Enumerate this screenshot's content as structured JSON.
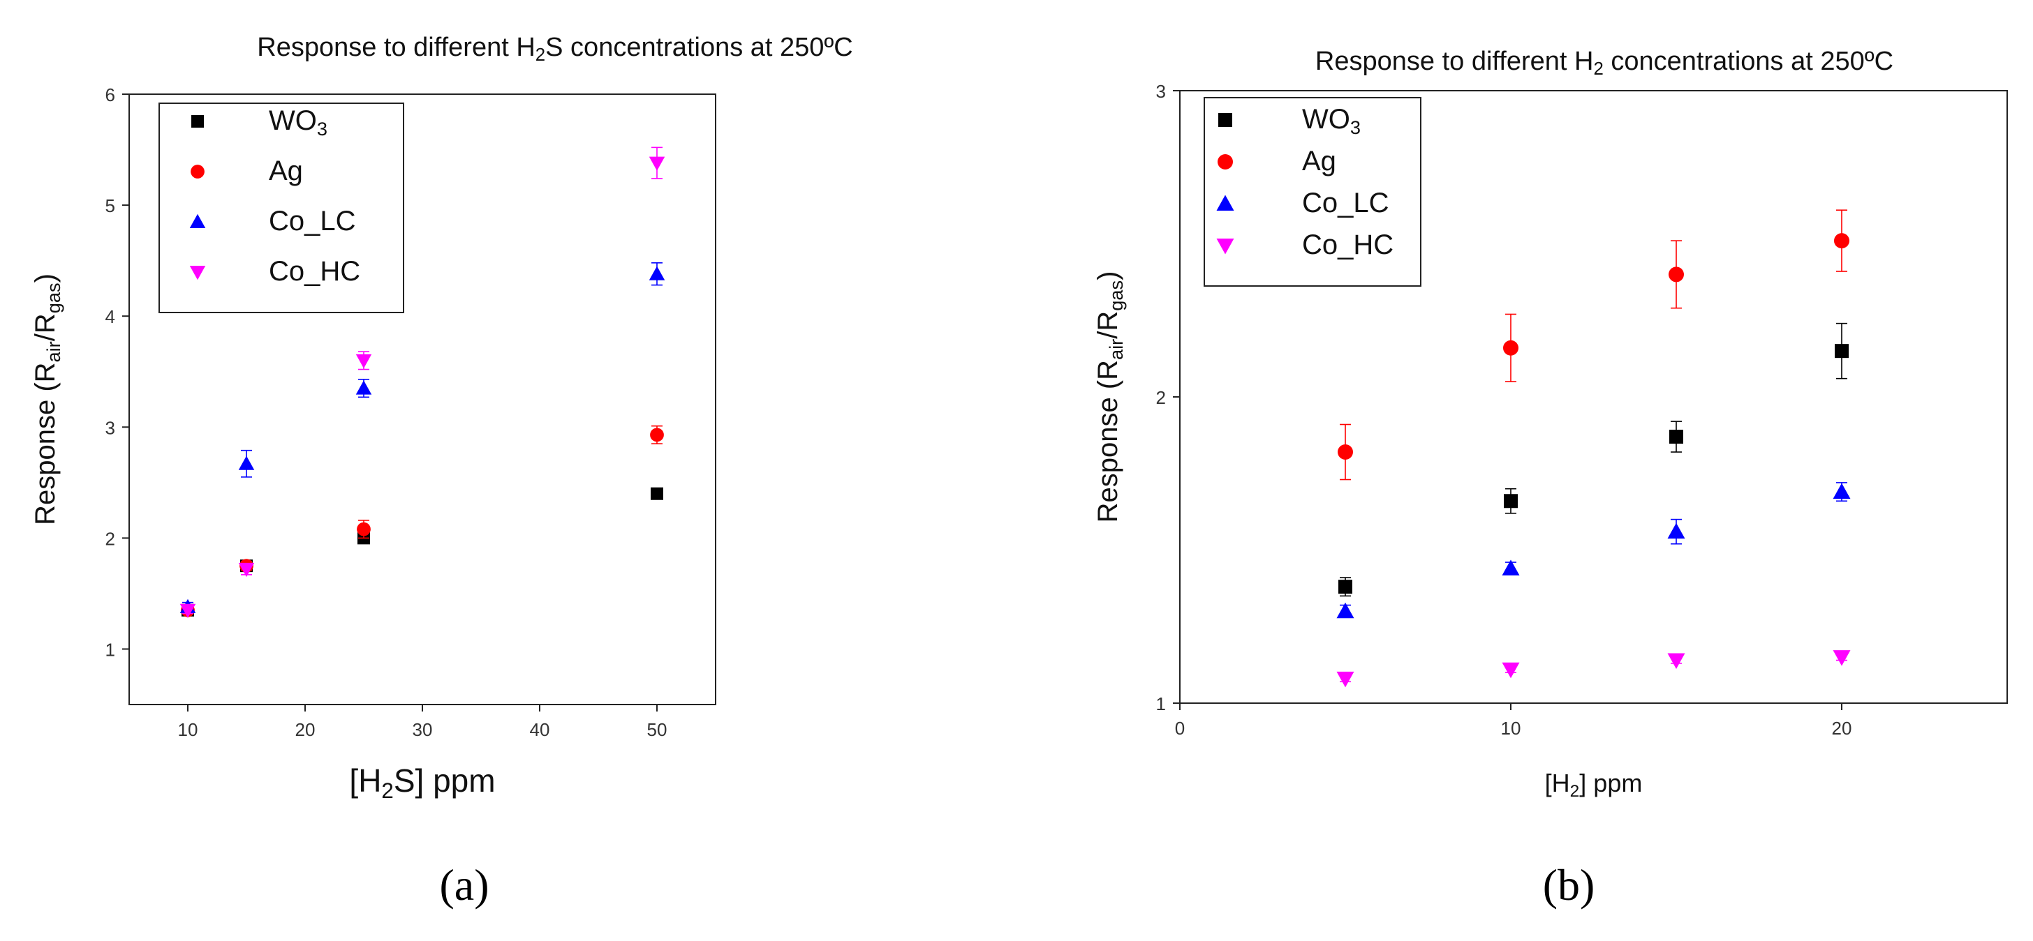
{
  "chart_data": [
    {
      "panel": "a",
      "type": "scatter",
      "title": [
        "Response to different H",
        "2",
        "S concentrations at 250ºC"
      ],
      "xlabel": [
        "[H",
        "2",
        "S] ppm"
      ],
      "ylabel": [
        "Response (R",
        "air",
        "/R",
        "gas",
        ")"
      ],
      "xlim": [
        5,
        55
      ],
      "ylim": [
        0.5,
        6
      ],
      "xticks": [
        10,
        20,
        30,
        40,
        50
      ],
      "yticks": [
        1,
        2,
        3,
        4,
        5,
        6
      ],
      "legend_position": "top-left",
      "series": [
        {
          "name": [
            "WO",
            "3"
          ],
          "marker": "square",
          "color": "#000000",
          "x": [
            10,
            15,
            25,
            50
          ],
          "y": [
            1.35,
            1.75,
            2.0,
            2.4
          ],
          "err": [
            0.03,
            0.03,
            0.04,
            0.05
          ]
        },
        {
          "name": [
            "Ag"
          ],
          "marker": "circle",
          "color": "#ff0000",
          "x": [
            10,
            15,
            25,
            50
          ],
          "y": [
            1.35,
            1.75,
            2.08,
            2.93
          ],
          "err": [
            0.03,
            0.04,
            0.08,
            0.08
          ]
        },
        {
          "name": [
            "Co_LC"
          ],
          "marker": "triangle-up",
          "color": "#0000ff",
          "x": [
            10,
            15,
            25,
            50
          ],
          "y": [
            1.38,
            2.67,
            3.35,
            4.38
          ],
          "err": [
            0.04,
            0.12,
            0.08,
            0.1
          ]
        },
        {
          "name": [
            "Co_HC"
          ],
          "marker": "triangle-down",
          "color": "#ff00ff",
          "x": [
            10,
            15,
            25,
            50
          ],
          "y": [
            1.35,
            1.72,
            3.6,
            5.38
          ],
          "err": [
            0.03,
            0.05,
            0.08,
            0.14
          ]
        }
      ]
    },
    {
      "panel": "b",
      "type": "scatter",
      "title": [
        "Response to different H",
        "2",
        " concentrations at 250ºC"
      ],
      "xlabel": [
        "[H",
        "2",
        "] ppm"
      ],
      "ylabel": [
        "Response (R",
        "air",
        "/R",
        "gas",
        ")"
      ],
      "xlim": [
        0,
        25
      ],
      "ylim": [
        1,
        3
      ],
      "xticks": [
        0,
        10,
        20
      ],
      "yticks": [
        1,
        2,
        3
      ],
      "legend_position": "top-left",
      "series": [
        {
          "name": [
            "WO",
            "3"
          ],
          "marker": "square",
          "color": "#000000",
          "x": [
            5,
            10,
            15,
            20
          ],
          "y": [
            1.38,
            1.66,
            1.87,
            2.15
          ],
          "err": [
            0.03,
            0.04,
            0.05,
            0.09
          ]
        },
        {
          "name": [
            "Ag"
          ],
          "marker": "circle",
          "color": "#ff0000",
          "x": [
            5,
            10,
            15,
            20
          ],
          "y": [
            1.82,
            2.16,
            2.4,
            2.51
          ],
          "err": [
            0.09,
            0.11,
            0.11,
            0.1
          ]
        },
        {
          "name": [
            "Co_LC"
          ],
          "marker": "triangle-up",
          "color": "#0000ff",
          "x": [
            5,
            10,
            15,
            20
          ],
          "y": [
            1.3,
            1.44,
            1.56,
            1.69
          ],
          "err": [
            0.02,
            0.02,
            0.04,
            0.03
          ]
        },
        {
          "name": [
            "Co_HC"
          ],
          "marker": "triangle-down",
          "color": "#ff00ff",
          "x": [
            5,
            10,
            15,
            20
          ],
          "y": [
            1.08,
            1.11,
            1.14,
            1.15
          ],
          "err": [
            0.01,
            0.01,
            0.01,
            0.01
          ]
        }
      ]
    }
  ],
  "panel_labels": [
    "(a)",
    "(b)"
  ]
}
